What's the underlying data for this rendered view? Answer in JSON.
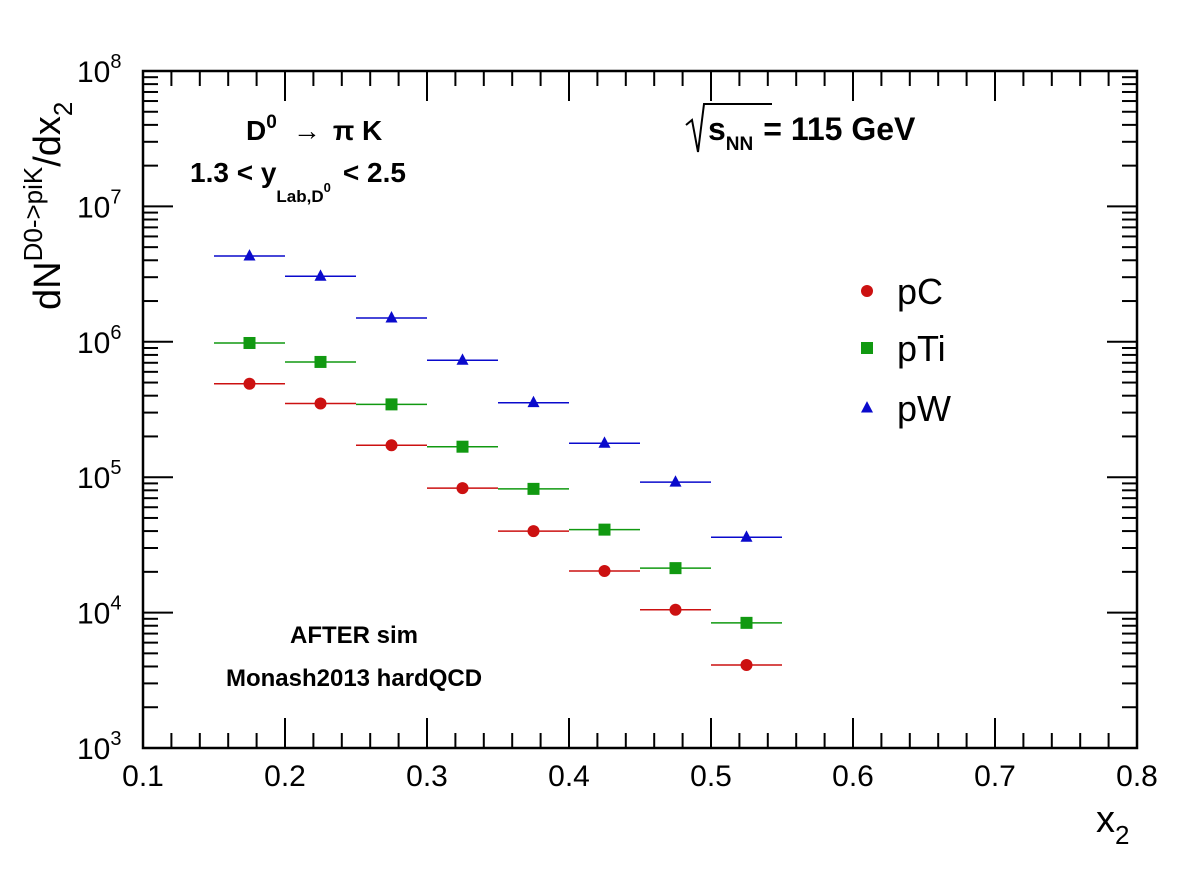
{
  "chart_data": {
    "type": "scatter",
    "xlabel": "x",
    "xlabel_sub": "2",
    "ylabel_main": "dN",
    "ylabel_sup": "D0->piK",
    "ylabel_tail": "/dx",
    "ylabel_sub": "2",
    "xlim": [
      0.1,
      0.8
    ],
    "ylim": [
      1000,
      100000000
    ],
    "yscale": "log",
    "x_ticks": [
      "0.1",
      "0.2",
      "0.3",
      "0.4",
      "0.5",
      "0.6",
      "0.7",
      "0.8"
    ],
    "y_ticks": [
      {
        "base": "10",
        "exp": "3"
      },
      {
        "base": "10",
        "exp": "4"
      },
      {
        "base": "10",
        "exp": "5"
      },
      {
        "base": "10",
        "exp": "6"
      },
      {
        "base": "10",
        "exp": "7"
      },
      {
        "base": "10",
        "exp": "8"
      }
    ],
    "legend_position": "right",
    "x_bin_halfwidth": 0.025,
    "series": [
      {
        "name": "pC",
        "marker": "circle",
        "color": "#cc1111",
        "x": [
          0.175,
          0.225,
          0.275,
          0.325,
          0.375,
          0.425,
          0.475,
          0.525
        ],
        "y": [
          490000,
          350000,
          172000,
          83000,
          40000,
          20300,
          10500,
          4100
        ]
      },
      {
        "name": "pTi",
        "marker": "square",
        "color": "#119911",
        "x": [
          0.175,
          0.225,
          0.275,
          0.325,
          0.375,
          0.425,
          0.475,
          0.525
        ],
        "y": [
          980000,
          710000,
          345000,
          168000,
          82000,
          41000,
          21300,
          8400
        ]
      },
      {
        "name": "pW",
        "marker": "triangle",
        "color": "#0a0acc",
        "x": [
          0.175,
          0.225,
          0.275,
          0.325,
          0.375,
          0.425,
          0.475,
          0.525
        ],
        "y": [
          4300000,
          3050000,
          1500000,
          730000,
          355000,
          178000,
          92000,
          36000
        ]
      }
    ],
    "annotations": {
      "decay_D": "D",
      "decay_D_sup": "0",
      "decay_arrow": "→",
      "decay_rest": "π K",
      "rapidity_pre": "1.3 < y",
      "rapidity_sub": "Lab,D",
      "rapidity_sub_sup": "0",
      "rapidity_post": "< 2.5",
      "energy_s": "s",
      "energy_sub": "NN",
      "energy_rest": "= 115 GeV",
      "sim_line1": "AFTER sim",
      "sim_line2": "Monash2013 hardQCD"
    }
  }
}
